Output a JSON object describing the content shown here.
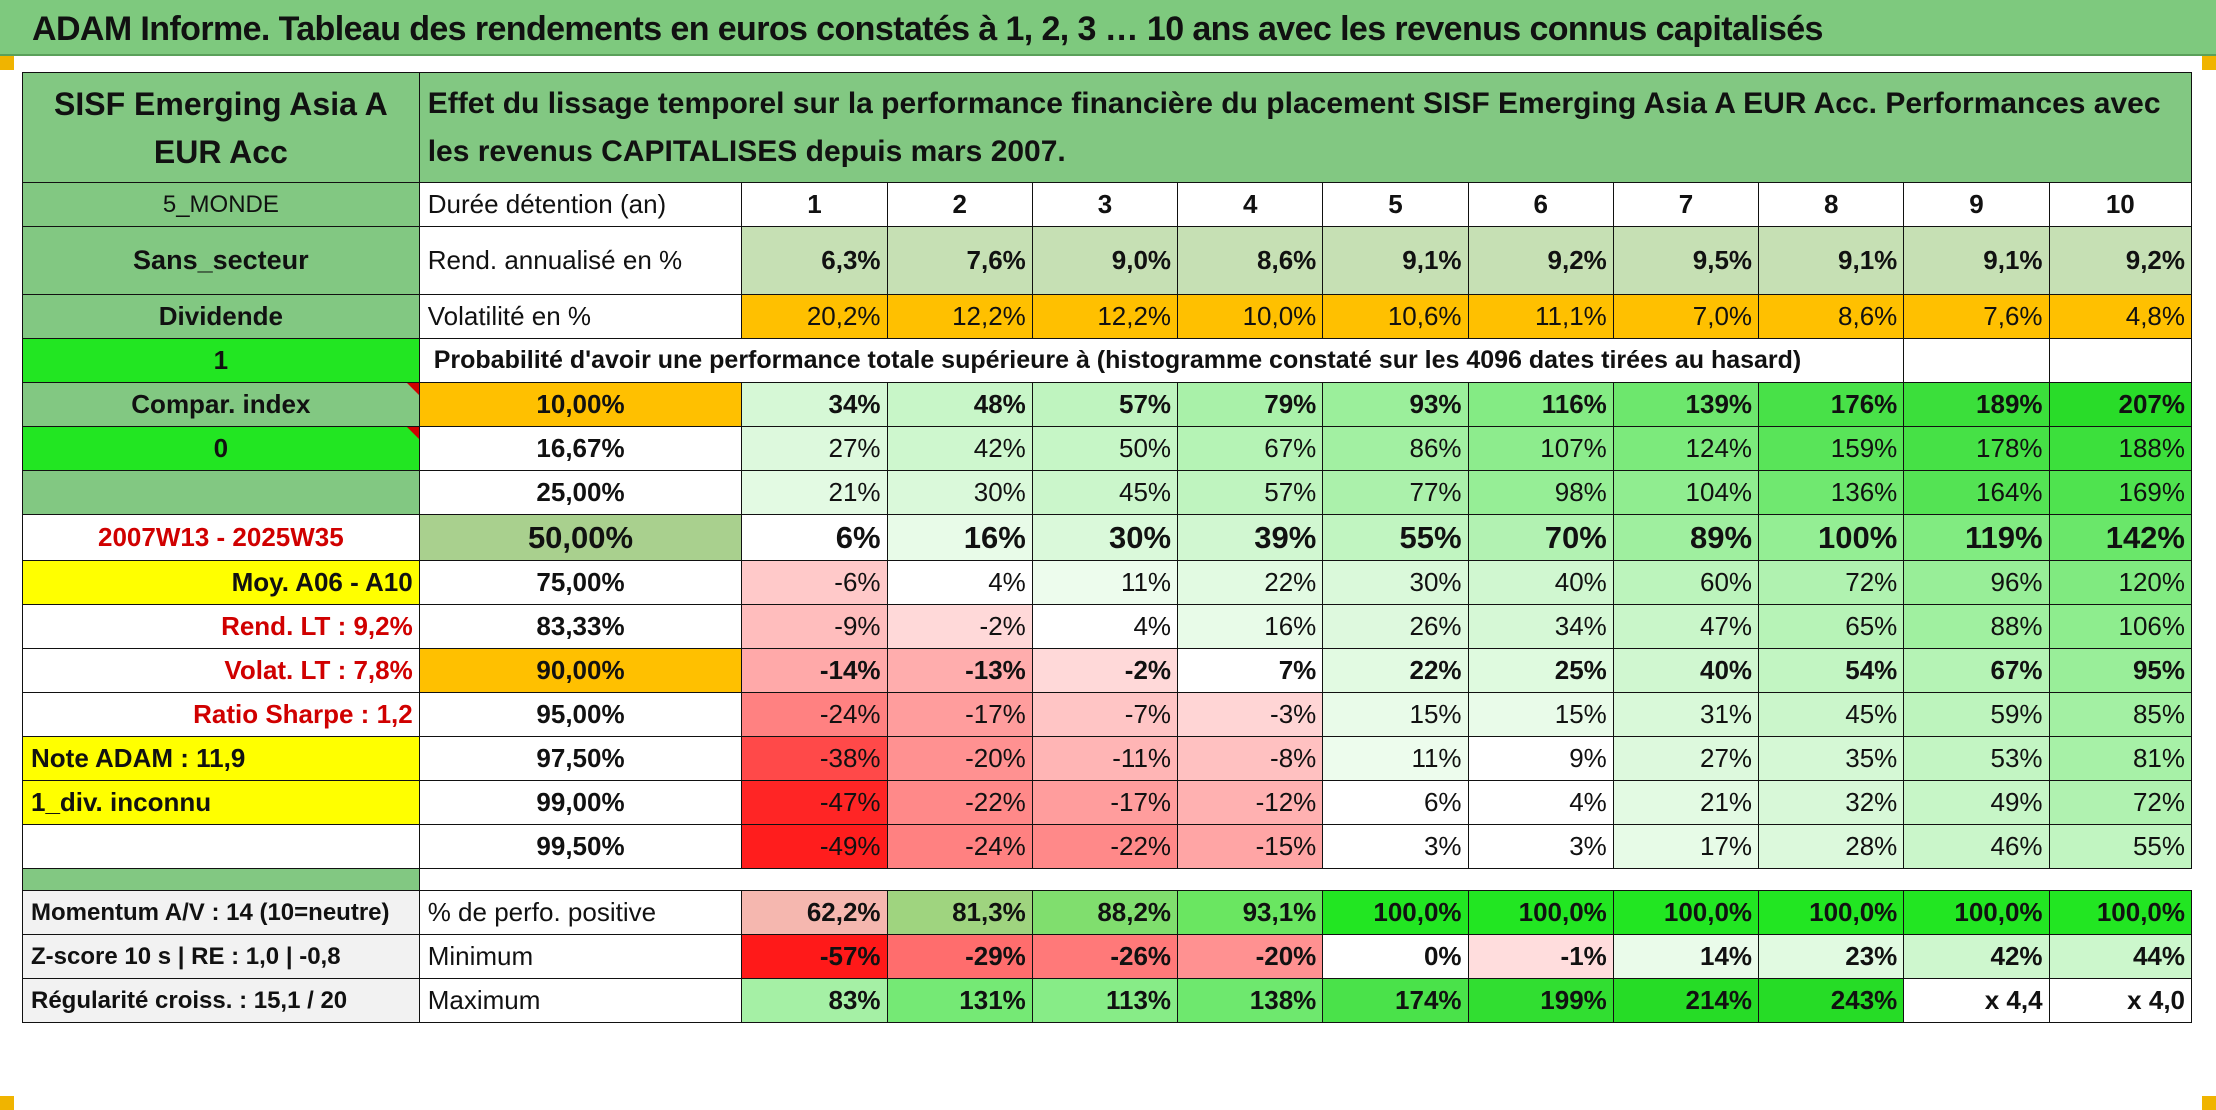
{
  "title": "ADAM Informe. Tableau des rendements en euros constatés à 1, 2, 3 … 10 ans avec les revenus connus capitalisés",
  "fund_name": "SISF Emerging Asia A EUR Acc",
  "description": "Effet du lissage temporel sur la performance financière du placement SISF Emerging Asia A EUR Acc. Performances avec les revenus CAPITALISES depuis mars 2007.",
  "left": {
    "zone": "5_MONDE",
    "sector": "Sans_secteur",
    "dividend": "Dividende",
    "one": "1",
    "compar_index": "Compar. index",
    "zero": "0",
    "period": "2007W13 - 2025W35",
    "moy": "Moy. A06 - A10",
    "rend_lt": "Rend. LT :   9,2%",
    "volat_lt": "Volat. LT :   7,8%",
    "sharpe": "Ratio Sharpe :    1,2",
    "note": "Note ADAM : 11,9",
    "div_inconnu": "1_div. inconnu",
    "momentum": "Momentum A/V : 14 (10=neutre)",
    "zscore": "Z-score 10 s | RE : 1,0 | -0,8",
    "regularite": "Régularité croiss. : 15,1 / 20"
  },
  "labels": {
    "duree": "Durée détention (an)",
    "rend": "Rend. annualisé en %",
    "volat": "Volatilité en %",
    "proba": "Probabilité d'avoir une performance totale supérieure à (histogramme constaté sur les 4096 dates tirées au hasard)",
    "perfo_pos": "% de perfo. positive",
    "minimum": "Minimum",
    "maximum": "Maximum"
  },
  "years": [
    "1",
    "2",
    "3",
    "4",
    "5",
    "6",
    "7",
    "8",
    "9",
    "10"
  ],
  "rend": [
    "6,3%",
    "7,6%",
    "9,0%",
    "8,6%",
    "9,1%",
    "9,2%",
    "9,5%",
    "9,1%",
    "9,1%",
    "9,2%"
  ],
  "volat": [
    "20,2%",
    "12,2%",
    "12,2%",
    "10,0%",
    "10,6%",
    "11,1%",
    "7,0%",
    "8,6%",
    "7,6%",
    "4,8%"
  ],
  "percentiles": [
    {
      "p": "10,00%",
      "v": [
        "34%",
        "48%",
        "57%",
        "79%",
        "93%",
        "116%",
        "139%",
        "176%",
        "189%",
        "207%"
      ]
    },
    {
      "p": "16,67%",
      "v": [
        "27%",
        "42%",
        "50%",
        "67%",
        "86%",
        "107%",
        "124%",
        "159%",
        "178%",
        "188%"
      ]
    },
    {
      "p": "25,00%",
      "v": [
        "21%",
        "30%",
        "45%",
        "57%",
        "77%",
        "98%",
        "104%",
        "136%",
        "164%",
        "169%"
      ]
    },
    {
      "p": "50,00%",
      "v": [
        "6%",
        "16%",
        "30%",
        "39%",
        "55%",
        "70%",
        "89%",
        "100%",
        "119%",
        "142%"
      ]
    },
    {
      "p": "75,00%",
      "v": [
        "-6%",
        "4%",
        "11%",
        "22%",
        "30%",
        "40%",
        "60%",
        "72%",
        "96%",
        "120%"
      ]
    },
    {
      "p": "83,33%",
      "v": [
        "-9%",
        "-2%",
        "4%",
        "16%",
        "26%",
        "34%",
        "47%",
        "65%",
        "88%",
        "106%"
      ]
    },
    {
      "p": "90,00%",
      "v": [
        "-14%",
        "-13%",
        "-2%",
        "7%",
        "22%",
        "25%",
        "40%",
        "54%",
        "67%",
        "95%"
      ]
    },
    {
      "p": "95,00%",
      "v": [
        "-24%",
        "-17%",
        "-7%",
        "-3%",
        "15%",
        "15%",
        "31%",
        "45%",
        "59%",
        "85%"
      ]
    },
    {
      "p": "97,50%",
      "v": [
        "-38%",
        "-20%",
        "-11%",
        "-8%",
        "11%",
        "9%",
        "27%",
        "35%",
        "53%",
        "81%"
      ]
    },
    {
      "p": "99,00%",
      "v": [
        "-47%",
        "-22%",
        "-17%",
        "-12%",
        "6%",
        "4%",
        "21%",
        "32%",
        "49%",
        "72%"
      ]
    },
    {
      "p": "99,50%",
      "v": [
        "-49%",
        "-24%",
        "-22%",
        "-15%",
        "3%",
        "3%",
        "17%",
        "28%",
        "46%",
        "55%"
      ]
    }
  ],
  "perfo_pos": [
    "62,2%",
    "81,3%",
    "88,2%",
    "93,1%",
    "100,0%",
    "100,0%",
    "100,0%",
    "100,0%",
    "100,0%",
    "100,0%"
  ],
  "minimum": [
    "-57%",
    "-29%",
    "-26%",
    "-20%",
    "0%",
    "-1%",
    "14%",
    "23%",
    "42%",
    "44%"
  ],
  "maximum": [
    "83%",
    "131%",
    "113%",
    "138%",
    "174%",
    "199%",
    "214%",
    "243%",
    "x 4,4",
    "x 4,0"
  ]
}
